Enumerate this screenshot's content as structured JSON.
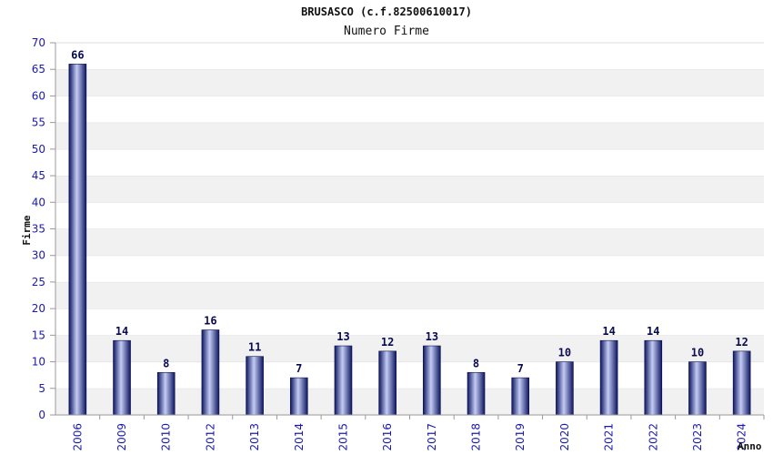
{
  "chart_data": {
    "type": "bar",
    "title": "BRUSASCO (c.f.82500610017)",
    "subtitle": "Numero Firme",
    "xlabel": "Anno",
    "ylabel": "Firme",
    "categories": [
      "2006",
      "2009",
      "2010",
      "2012",
      "2013",
      "2014",
      "2015",
      "2016",
      "2017",
      "2018",
      "2019",
      "2020",
      "2021",
      "2022",
      "2023",
      "2024"
    ],
    "values": [
      66,
      14,
      8,
      16,
      11,
      7,
      13,
      12,
      13,
      8,
      7,
      10,
      14,
      14,
      10,
      12
    ],
    "ylim": [
      0,
      70
    ],
    "yticks": [
      0,
      5,
      10,
      15,
      20,
      25,
      30,
      35,
      40,
      45,
      50,
      55,
      60,
      65,
      70
    ],
    "grid": true,
    "colors": {
      "bar_dark": "#101a6e",
      "bar_light": "#b8c2f0",
      "band_shaded": "#f1f1f1",
      "band_plain": "#ffffff",
      "tick_text": "#1a1ab0"
    }
  }
}
